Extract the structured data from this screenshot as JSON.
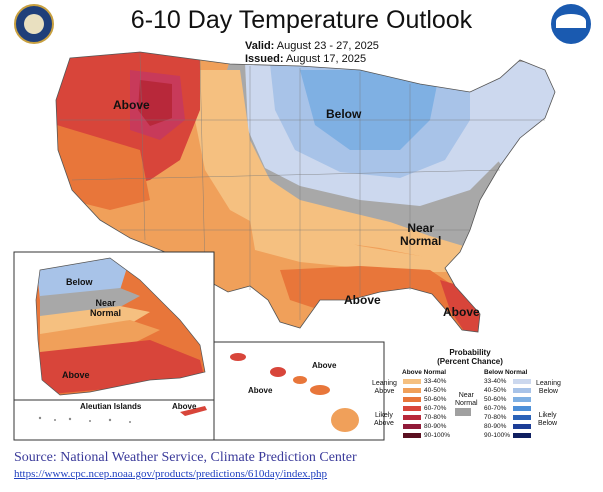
{
  "title": "6-10 Day Temperature Outlook",
  "valid_label": "Valid:",
  "valid_dates": "August 23 - 27, 2025",
  "issued_label": "Issued:",
  "issued_date": "August 17, 2025",
  "logo_left": "dept-of-commerce-seal",
  "logo_right": "noaa-logo",
  "map_labels": {
    "above_nw": "Above",
    "below_mw": "Below",
    "near_normal": "Near\nNormal",
    "above_gulf": "Above",
    "above_fl": "Above",
    "alaska_below": "Below",
    "alaska_near": "Near\nNormal",
    "alaska_above": "Above",
    "aleutian": "Aleutian Islands",
    "aleutian_above": "Above",
    "hawaii_above1": "Above",
    "hawaii_above2": "Above"
  },
  "legend": {
    "title": "Probability\n(Percent Chance)",
    "above_header": "Above Normal",
    "below_header": "Below Normal",
    "leaning_above": "Leaning\nAbove",
    "likely_above": "Likely\nAbove",
    "near_normal": "Near\nNormal",
    "leaning_below": "Leaning\nBelow",
    "likely_below": "Likely\nBelow",
    "ranges": [
      "33-40%",
      "40-50%",
      "50-60%",
      "60-70%",
      "70-80%",
      "80-90%",
      "90-100%"
    ],
    "above_colors": [
      "#f5c080",
      "#f0a05a",
      "#e8763a",
      "#d8453a",
      "#b8283a",
      "#901a38",
      "#5a0f20"
    ],
    "below_colors": [
      "#ccd8ee",
      "#a8c3e8",
      "#7fb0e3",
      "#4c8fd8",
      "#2a62b8",
      "#1c3d96",
      "#0f1f60"
    ],
    "near_color": "#a0a0a0"
  },
  "source": "Source: National Weather Service, Climate Prediction Center",
  "url": "https://www.cpc.ncep.noaa.gov/products/predictions/610day/index.php"
}
